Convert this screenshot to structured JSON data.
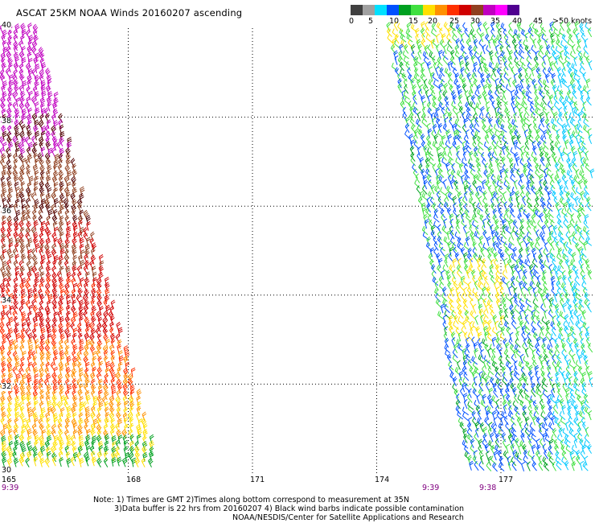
{
  "title": "ASCAT 25KM NOAA Winds 20160207 ascending",
  "colorbar": {
    "swatches": [
      "#404040",
      "#a0a0a0",
      "#00e0ff",
      "#0050ff",
      "#00a020",
      "#40e040",
      "#ffe000",
      "#ff9000",
      "#ff3000",
      "#d00000",
      "#904020",
      "#c000c0",
      "#ff00ff",
      "#500090"
    ],
    "labels": [
      "0",
      "5",
      "10",
      "15",
      "20",
      "25",
      "30",
      "35",
      "40",
      "45",
      ">50 knots"
    ]
  },
  "map": {
    "lon_labels": [
      "165",
      "168",
      "171",
      "174",
      "177"
    ],
    "lat_labels": [
      "40",
      "38",
      "36",
      "34",
      "32",
      "30"
    ],
    "time_labels": [
      "9:39",
      "9:39",
      "9:38"
    ],
    "lon_range": [
      165,
      179.3
    ],
    "lat_range": [
      30,
      40
    ],
    "gridlines_lon": [
      168,
      171,
      174,
      177
    ],
    "gridlines_lat": [
      32,
      34,
      36,
      38
    ]
  },
  "notes": [
    "Note: 1) Times are GMT 2)Times along bottom correspond to measurement at 35N",
    "3)Data buffer is 22 hrs from 20160207 4) Black wind barbs indicate possible contamination",
    "NOAA/NESDIS/Center for Satellite Applications and Research"
  ]
}
